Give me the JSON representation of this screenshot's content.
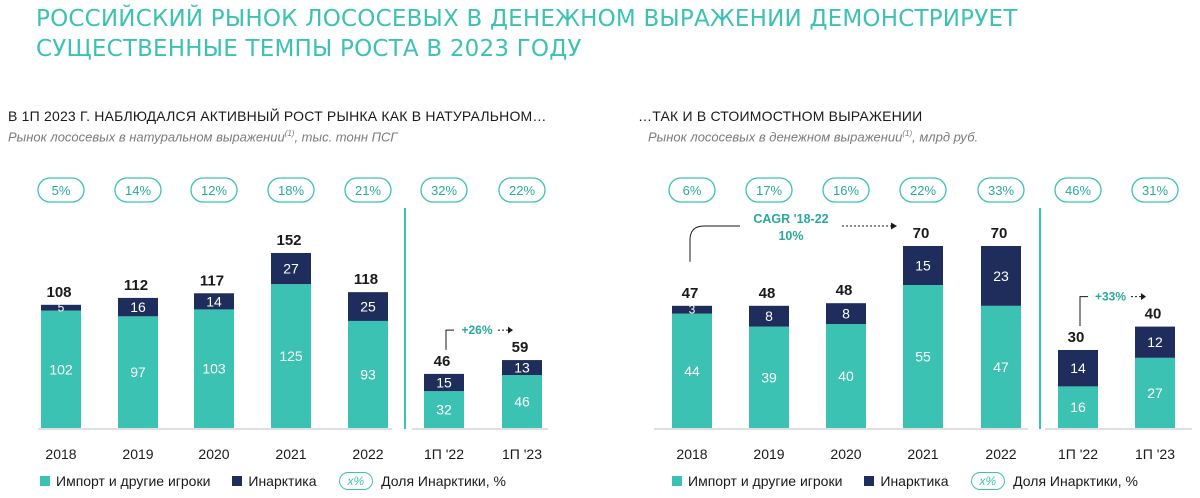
{
  "title": {
    "line1": "РОССИЙСКИЙ РЫНОК ЛОСОСЕВЫХ В ДЕНЕЖНОМ ВЫРАЖЕНИИ ДЕМОНСТРИРУЕТ",
    "line2": "СУЩЕСТВЕННЫЕ ТЕМПЫ РОСТА В 2023 ГОДУ"
  },
  "colors": {
    "teal": "#3cc2b2",
    "navy": "#1e2d5c",
    "accent": "#3cc2b2"
  },
  "legend": {
    "import_label": "Импорт и другие игроки",
    "inarktika_label": "Инарктика",
    "share_symbol": "x%",
    "share_label": "Доля Инарктики, %"
  },
  "chart_data": [
    {
      "type": "bar",
      "stacked": true,
      "heading": "В 1П 2023 Г. НАБЛЮДАЛСЯ АКТИВНЫЙ РОСТ РЫНКА КАК В НАТУРАЛЬНОМ…",
      "caption": "Рынок лососевых в натуральном выражении",
      "caption_sup": "(1)",
      "caption_unit": ", тыс. тонн ПСГ",
      "categories": [
        "2018",
        "2019",
        "2020",
        "2021",
        "2022",
        "1П '22",
        "1П '23"
      ],
      "series": [
        {
          "name": "Импорт и другие игроки",
          "values": [
            102,
            97,
            103,
            125,
            93,
            32,
            46
          ]
        },
        {
          "name": "Инарктика",
          "values": [
            5,
            16,
            14,
            27,
            25,
            15,
            13
          ]
        }
      ],
      "totals": [
        "108",
        "112",
        "117",
        "152",
        "118",
        "46",
        "59"
      ],
      "shares": [
        "5%",
        "14%",
        "12%",
        "18%",
        "21%",
        "32%",
        "22%"
      ],
      "growth_annotation": "+26%",
      "ylim": [
        0,
        152
      ]
    },
    {
      "type": "bar",
      "stacked": true,
      "heading": "…ТАК И В СТОИМОСТНОМ ВЫРАЖЕНИИ",
      "caption": "Рынок лососевых в денежном выражении",
      "caption_sup": "(1)",
      "caption_unit": ", млрд руб.",
      "categories": [
        "2018",
        "2019",
        "2020",
        "2021",
        "2022",
        "1П '22",
        "1П '23"
      ],
      "series": [
        {
          "name": "Импорт и другие игроки",
          "values": [
            44,
            39,
            40,
            55,
            47,
            16,
            27
          ]
        },
        {
          "name": "Инарктика",
          "values": [
            3,
            8,
            8,
            15,
            23,
            14,
            12
          ]
        }
      ],
      "totals": [
        "47",
        "48",
        "48",
        "70",
        "70",
        "30",
        "40"
      ],
      "shares": [
        "6%",
        "17%",
        "16%",
        "22%",
        "33%",
        "46%",
        "31%"
      ],
      "growth_annotation": "+33%",
      "cagr_label_1": "CAGR '18-22",
      "cagr_label_2": "10%",
      "ylim": [
        0,
        70
      ]
    }
  ]
}
